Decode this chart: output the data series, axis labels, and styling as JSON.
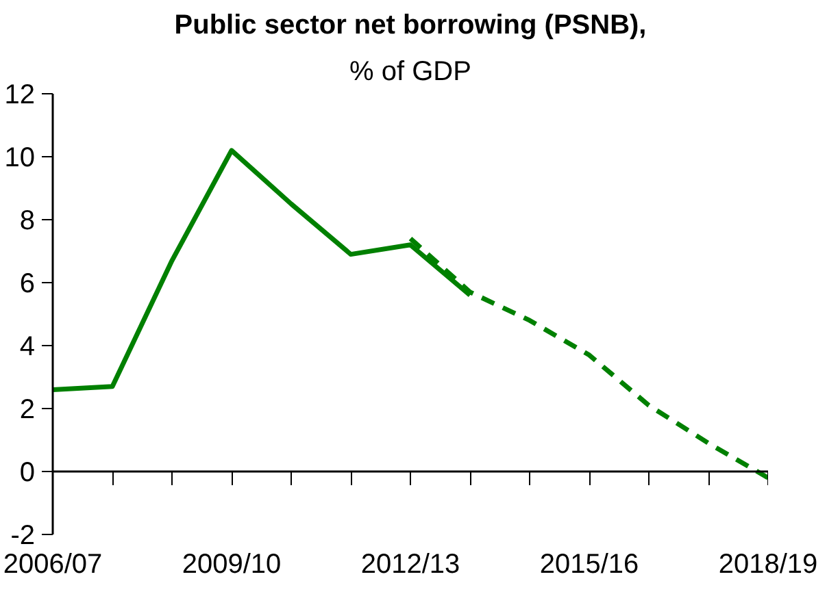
{
  "chart_data": {
    "type": "line",
    "title": "Public sector net borrowing (PSNB),",
    "subtitle": "% of GDP",
    "categories": [
      "2006/07",
      null,
      null,
      "2009/10",
      null,
      null,
      "2012/13",
      null,
      null,
      "2015/16",
      null,
      null,
      "2018/19"
    ],
    "series": [
      {
        "color": "#008000",
        "line_style": "solid",
        "values": [
          2.6,
          2.7,
          6.7,
          10.2,
          8.5,
          6.9,
          7.2,
          5.6,
          null,
          null,
          null,
          null,
          null
        ]
      },
      {
        "color": "#008000",
        "line_style": "dashed",
        "values": [
          null,
          null,
          null,
          null,
          null,
          null,
          7.4,
          5.7,
          4.8,
          3.7,
          2.1,
          0.9,
          -0.2
        ]
      }
    ],
    "ylim": [
      -2,
      12
    ],
    "yticks": [
      -2,
      0,
      2,
      4,
      6,
      8,
      10,
      12
    ],
    "marker": "none"
  }
}
